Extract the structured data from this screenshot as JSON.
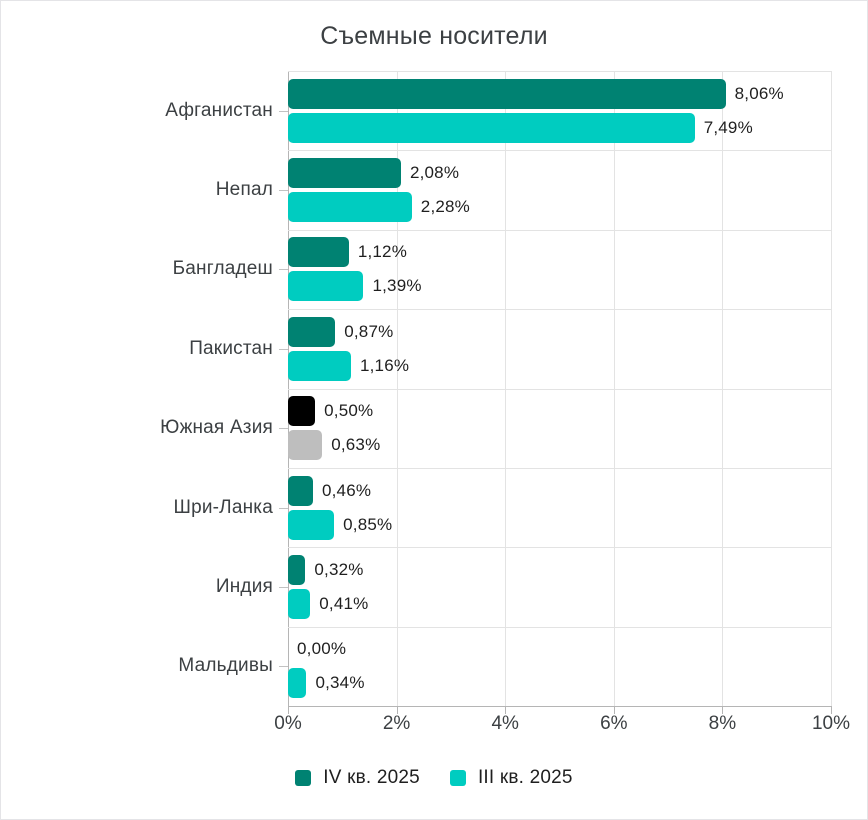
{
  "chart_data": {
    "type": "bar",
    "orientation": "horizontal",
    "title": "Съемные носители",
    "categories": [
      "Афганистан",
      "Непал",
      "Бангладеш",
      "Пакистан",
      "Южная Азия",
      "Шри-Ланка",
      "Индия",
      "Мальдивы"
    ],
    "series": [
      {
        "name": "IV кв. 2025",
        "color": "#008272",
        "values": [
          8.06,
          2.08,
          1.12,
          0.87,
          0.5,
          0.46,
          0.32,
          0.0
        ],
        "labels": [
          "8,06%",
          "2,08%",
          "1,12%",
          "0,87%",
          "0,50%",
          "0,46%",
          "0,32%",
          "0,00%"
        ]
      },
      {
        "name": "III кв. 2025",
        "color": "#00ccc0",
        "values": [
          7.49,
          2.28,
          1.39,
          1.16,
          0.63,
          0.85,
          0.41,
          0.34
        ],
        "labels": [
          "7,49%",
          "2,28%",
          "1,39%",
          "1,16%",
          "0,63%",
          "0,85%",
          "0,41%",
          "0,34%"
        ]
      }
    ],
    "highlight": {
      "category": "Южная Азия",
      "index": 4,
      "colors": [
        "#000000",
        "#bebebe"
      ]
    },
    "x_axis": {
      "min": 0,
      "max": 10,
      "ticks": [
        "0%",
        "2%",
        "4%",
        "6%",
        "8%",
        "10%"
      ]
    },
    "legend_position": "bottom",
    "grid": true
  },
  "colors": {
    "grid": "#e3e3e3",
    "axis": "#b5b5b5",
    "value_text": "#1f1f1f",
    "category_text": "#3c4043"
  }
}
